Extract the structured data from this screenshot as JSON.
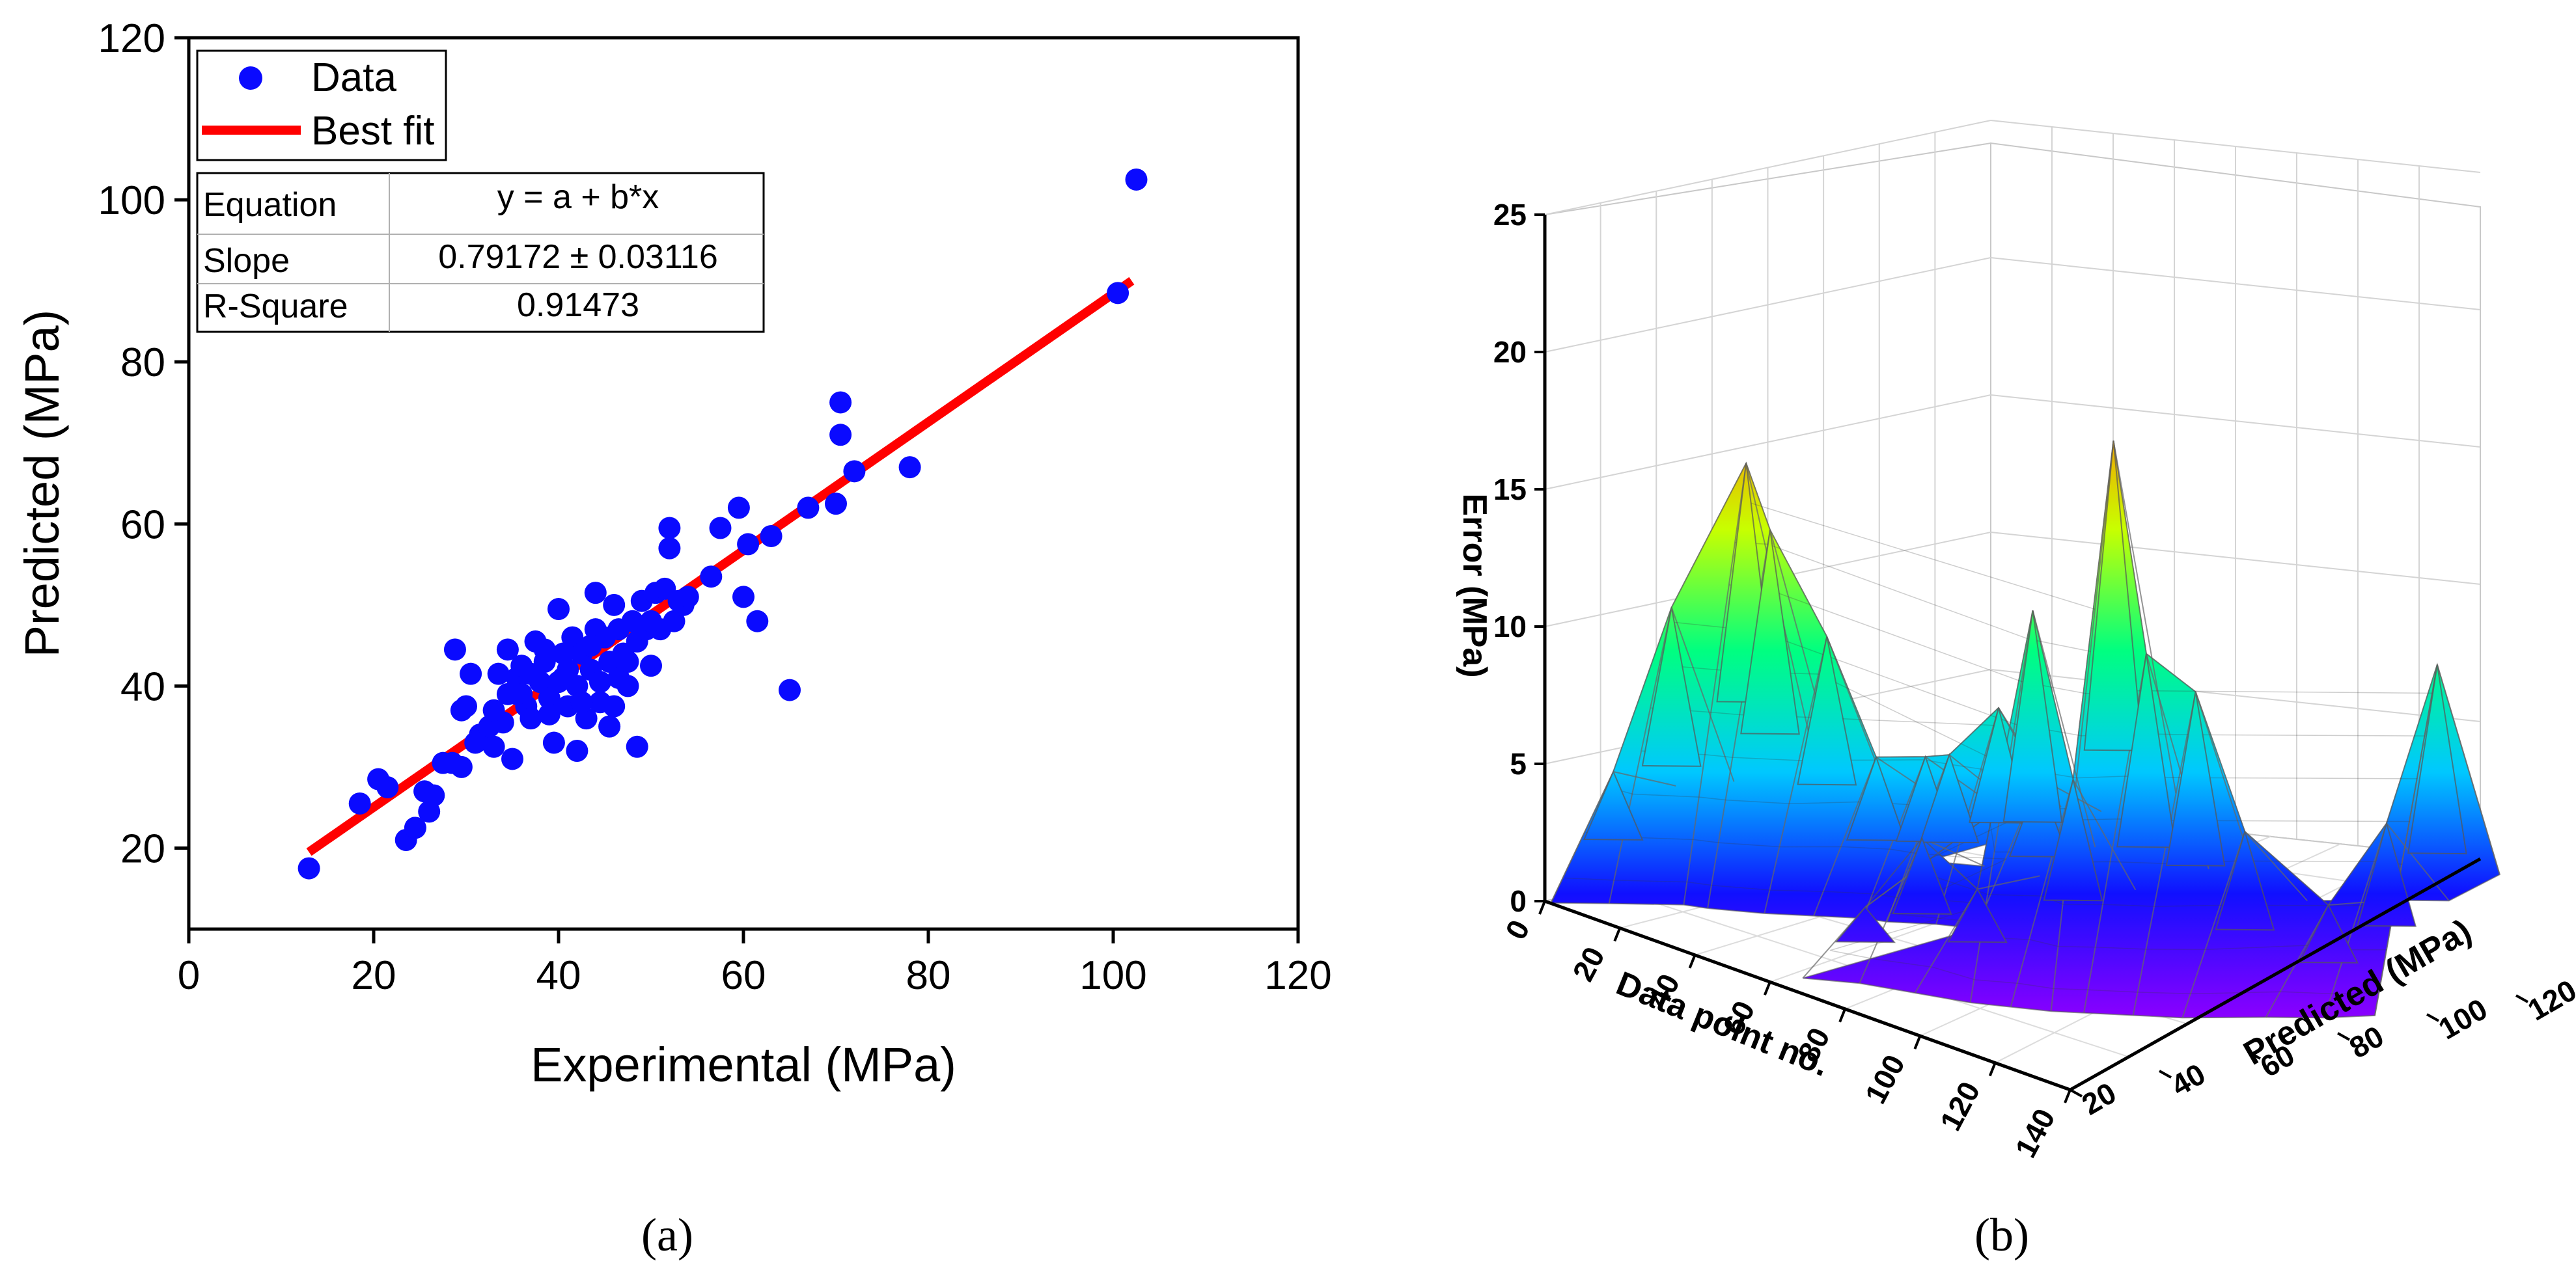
{
  "chart_data": [
    {
      "type": "scatter",
      "panel_label": "(a)",
      "xlabel": "Experimental (MPa)",
      "ylabel": "Predicted (MPa)",
      "xlim": [
        0,
        120
      ],
      "ylim": [
        10,
        120
      ],
      "xticks": [
        "0",
        "20",
        "40",
        "60",
        "80",
        "100",
        "120"
      ],
      "yticks": [
        "20",
        "40",
        "60",
        "80",
        "100",
        "120"
      ],
      "legend": {
        "position": "top-left",
        "data_label": "Data",
        "fit_label": "Best fit"
      },
      "colors": {
        "points": "#0a0aff",
        "fit": "#ff0000"
      },
      "fit_line": {
        "x": [
          13,
          102
        ],
        "y": [
          19.5,
          90.0
        ]
      },
      "stats": {
        "rows": [
          {
            "label": "Equation",
            "value": "y = a + b*x"
          },
          {
            "label": "Slope",
            "value": "0.79172 ± 0.03116"
          },
          {
            "label": "R-Square",
            "value": "0.91473"
          }
        ]
      },
      "series": [
        {
          "name": "Data",
          "points": [
            [
              13,
              17.5
            ],
            [
              18.5,
              25.5
            ],
            [
              20.5,
              28.5
            ],
            [
              21.5,
              27.5
            ],
            [
              23.5,
              21
            ],
            [
              24.5,
              22.5
            ],
            [
              25.5,
              27
            ],
            [
              26,
              24.5
            ],
            [
              26.5,
              26.5
            ],
            [
              27.5,
              30.5
            ],
            [
              28.5,
              30.5
            ],
            [
              29.5,
              30
            ],
            [
              28.8,
              44.5
            ],
            [
              29.5,
              37
            ],
            [
              30,
              37.5
            ],
            [
              30.5,
              41.5
            ],
            [
              31.5,
              34
            ],
            [
              32.5,
              35
            ],
            [
              33,
              32.5
            ],
            [
              33.5,
              41.5
            ],
            [
              34,
              35.5
            ],
            [
              34.5,
              44.5
            ],
            [
              34.5,
              39
            ],
            [
              35,
              31
            ],
            [
              35.5,
              41
            ],
            [
              36,
              42.5
            ],
            [
              36.5,
              37.5
            ],
            [
              37,
              36
            ],
            [
              37.5,
              45.5
            ],
            [
              38,
              40.5
            ],
            [
              38.5,
              43
            ],
            [
              39,
              38.5
            ],
            [
              39.5,
              33
            ],
            [
              40,
              49.5
            ],
            [
              40.5,
              41
            ],
            [
              41,
              37.5
            ],
            [
              41.5,
              46
            ],
            [
              42,
              32
            ],
            [
              42,
              40
            ],
            [
              42.5,
              44
            ],
            [
              43,
              36
            ],
            [
              43.5,
              42
            ],
            [
              44,
              51.5
            ],
            [
              44,
              47
            ],
            [
              44.5,
              38
            ],
            [
              45,
              46
            ],
            [
              45.5,
              43
            ],
            [
              46,
              50
            ],
            [
              46,
              37.5
            ],
            [
              46.5,
              41
            ],
            [
              47,
              44
            ],
            [
              47.5,
              40
            ],
            [
              48,
              48
            ],
            [
              48.5,
              45.5
            ],
            [
              48.5,
              32.5
            ],
            [
              49,
              50.5
            ],
            [
              49.5,
              47
            ],
            [
              50,
              42.5
            ],
            [
              50.5,
              51.5
            ],
            [
              51,
              47
            ],
            [
              51.5,
              52
            ],
            [
              52,
              59.5
            ],
            [
              52,
              57
            ],
            [
              52.5,
              48
            ],
            [
              53,
              50.5
            ],
            [
              53.5,
              50
            ],
            [
              54,
              51
            ],
            [
              56.5,
              53.5
            ],
            [
              57.5,
              59.5
            ],
            [
              59.5,
              62
            ],
            [
              60,
              51
            ],
            [
              60.5,
              57.5
            ],
            [
              61.5,
              48
            ],
            [
              63,
              58.5
            ],
            [
              65,
              39.5
            ],
            [
              67,
              62
            ],
            [
              70,
              62.5
            ],
            [
              70.5,
              75
            ],
            [
              70.5,
              71
            ],
            [
              72,
              66.5
            ],
            [
              78,
              67
            ],
            [
              100.5,
              88.5
            ],
            [
              102.5,
              102.5
            ],
            [
              36,
              39
            ],
            [
              37,
              41.5
            ],
            [
              38.5,
              44.5
            ],
            [
              39,
              36.5
            ],
            [
              40,
              40.5
            ],
            [
              41,
              42
            ],
            [
              42.5,
              38
            ],
            [
              43.5,
              45
            ],
            [
              44.5,
              40.5
            ],
            [
              46.5,
              47
            ],
            [
              47.5,
              43
            ],
            [
              50,
              48
            ],
            [
              45.5,
              35
            ],
            [
              35.5,
              39
            ],
            [
              33,
              37
            ],
            [
              31,
              33
            ],
            [
              40.5,
              44
            ]
          ]
        }
      ]
    },
    {
      "type": "3d-surface",
      "panel_label": "(b)",
      "xlabel": "Data point no.",
      "ylabel": "Predicted (MPa)",
      "zlabel": "Error (MPa)",
      "xticks": [
        "0",
        "20",
        "40",
        "60",
        "80",
        "100",
        "120",
        "140"
      ],
      "yticks": [
        "20",
        "40",
        "60",
        "80",
        "100",
        "120"
      ],
      "zticks": [
        "0",
        "5",
        "10",
        "15",
        "20",
        "25"
      ],
      "xlim": [
        0,
        140
      ],
      "ylim": [
        20,
        120
      ],
      "zlim": [
        0,
        25
      ],
      "colorscale": [
        "#8800ff",
        "#1010ff",
        "#00c8ff",
        "#00ff80",
        "#c8ff00",
        "#ff8800",
        "#ff0000"
      ],
      "peaks": [
        {
          "x": 4,
          "y": 32,
          "z": 4.5
        },
        {
          "x": 10,
          "y": 40,
          "z": 10.5
        },
        {
          "x": 18,
          "y": 50,
          "z": 15.8
        },
        {
          "x": 22,
          "y": 52,
          "z": 13.5
        },
        {
          "x": 30,
          "y": 58,
          "z": 9.8
        },
        {
          "x": 36,
          "y": 64,
          "z": 5.5
        },
        {
          "x": 42,
          "y": 70,
          "z": 5.6
        },
        {
          "x": 46,
          "y": 72,
          "z": 5.8
        },
        {
          "x": 52,
          "y": 78,
          "z": 7.6
        },
        {
          "x": 58,
          "y": 82,
          "z": 5.2
        },
        {
          "x": 64,
          "y": 38,
          "z": 2.3
        },
        {
          "x": 72,
          "y": 44,
          "z": 5.0
        },
        {
          "x": 82,
          "y": 48,
          "z": 3.5
        },
        {
          "x": 92,
          "y": 52,
          "z": 14.0
        },
        {
          "x": 98,
          "y": 56,
          "z": 8.0
        },
        {
          "x": 104,
          "y": 60,
          "z": 20.5
        },
        {
          "x": 108,
          "y": 64,
          "z": 12.8
        },
        {
          "x": 114,
          "y": 70,
          "z": 11.5
        },
        {
          "x": 120,
          "y": 76,
          "z": 6.5
        },
        {
          "x": 128,
          "y": 88,
          "z": 3.8
        },
        {
          "x": 134,
          "y": 96,
          "z": 6.8
        },
        {
          "x": 138,
          "y": 104,
          "z": 12.5
        }
      ]
    }
  ]
}
